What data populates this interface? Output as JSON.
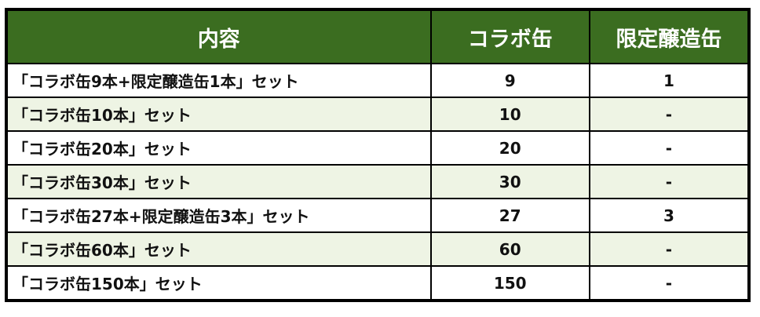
{
  "headers": [
    "内容",
    "コラボ缶",
    "限定醸造缶"
  ],
  "rows": [
    {
      "name": "「コラボ缶9本+限定醸造缶1本」セット",
      "collab": "9",
      "limited": "1"
    },
    {
      "name": "「コラボ缶10本」セット",
      "collab": "10",
      "limited": "-"
    },
    {
      "name": "「コラボ缶20本」セット",
      "collab": "20",
      "limited": "-"
    },
    {
      "name": "「コラボ缶30本」セット",
      "collab": "30",
      "limited": "-"
    },
    {
      "name": "「コラボ缶27本+限定醸造缶3本」セット",
      "collab": "27",
      "limited": "3"
    },
    {
      "name": "「コラボ缶60本」セット",
      "collab": "60",
      "limited": "-"
    },
    {
      "name": "「コラボ缶150本」セット",
      "collab": "150",
      "limited": "-"
    }
  ],
  "colors": {
    "header_bg": "#3b6d20",
    "alt_row_bg": "#eef4e4"
  }
}
